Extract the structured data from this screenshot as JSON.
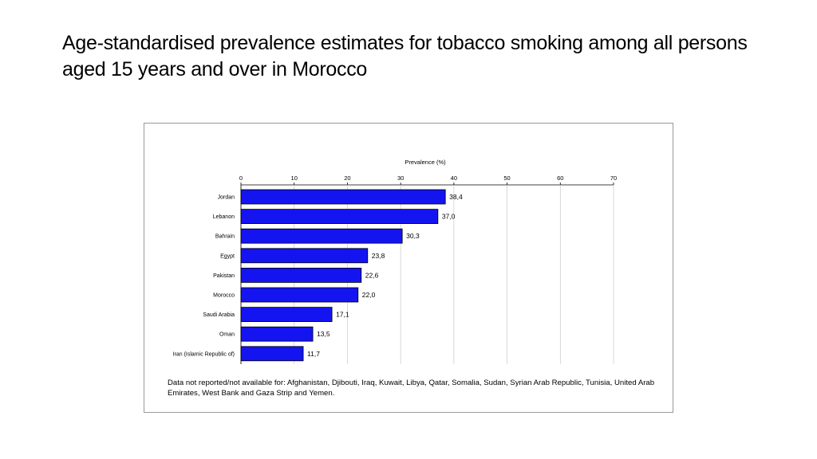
{
  "slide": {
    "title": "Age-standardised prevalence estimates for tobacco smoking among all persons aged 15 years and over in Morocco"
  },
  "chart_data": {
    "type": "bar",
    "orientation": "horizontal",
    "categories": [
      "Jordan",
      "Lebanon",
      "Bahrain",
      "Egypt",
      "Pakistan",
      "Morocco",
      "Saudi Arabia",
      "Oman",
      "Iran (Islamic Republic of)"
    ],
    "values": [
      38.4,
      37.0,
      30.3,
      23.8,
      22.6,
      22.0,
      17.1,
      13.5,
      11.7
    ],
    "value_labels": [
      "38,4",
      "37,0",
      "30,3",
      "23,8",
      "22,6",
      "22,0",
      "17,1",
      "13,5",
      "11,7"
    ],
    "axis_title": "Prevalence (%)",
    "xlim": [
      0,
      70
    ],
    "ticks": [
      0,
      10,
      20,
      30,
      40,
      50,
      60,
      70
    ],
    "tick_labels": [
      "0",
      "10",
      "20",
      "30",
      "40",
      "50",
      "60",
      "70"
    ],
    "axis_position": "top",
    "grid": true,
    "bar_color": "#1414f0",
    "footnote": "Data not reported/not available for:  Afghanistan, Djibouti, Iraq, Kuwait, Libya, Qatar, Somalia, Sudan, Syrian Arab Republic, Tunisia, United Arab Emirates, West Bank and Gaza Strip and Yemen."
  }
}
